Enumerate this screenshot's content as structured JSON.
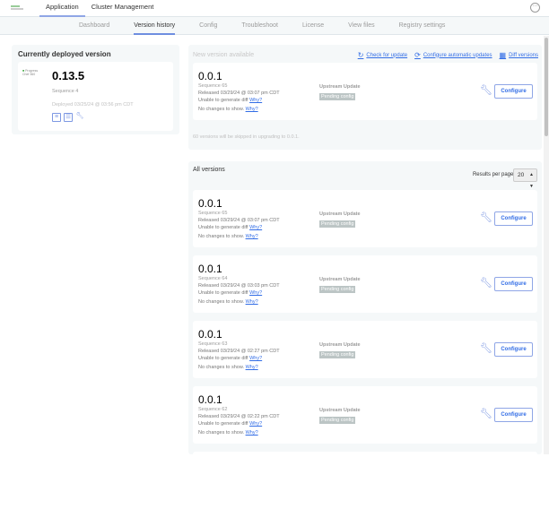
{
  "topnav": {
    "items": [
      "Application",
      "Cluster Management"
    ],
    "active": 0
  },
  "tabs": [
    "Dashboard",
    "Version history",
    "Config",
    "Troubleshoot",
    "License",
    "View files",
    "Registry settings"
  ],
  "active_tab": 1,
  "deployed": {
    "title": "Currently deployed version",
    "logo_text": "Progress Chef 360",
    "version": "0.13.5",
    "sequence": "Sequence 4",
    "deployed_at": "Deployed 03/25/24 @ 03:56 pm CDT"
  },
  "new_version": {
    "title": "New version available",
    "check_label": "Check for update",
    "auto_label": "Configure automatic updates",
    "diff_label": "Diff versions",
    "skip_note": "60 versions will be skipped in upgrading to 0.0.1.",
    "card": {
      "version": "0.0.1",
      "sequence": "Sequence 65",
      "released": "Released 03/29/24 @ 03:07 pm CDT",
      "diff": "Unable to generate diff",
      "changes": "No changes to show.",
      "why": "Why?",
      "source": "Upstream Update",
      "status": "Pending config",
      "button": "Configure"
    }
  },
  "all_versions": {
    "title": "All versions",
    "results_label": "Results per page:",
    "results_value": "20",
    "items": [
      {
        "version": "0.0.1",
        "sequence": "Sequence 65",
        "released": "Released 03/29/24 @ 03:07 pm CDT",
        "diff": "Unable to generate diff",
        "changes": "No changes to show.",
        "why": "Why?",
        "source": "Upstream Update",
        "status": "Pending config",
        "button": "Configure"
      },
      {
        "version": "0.0.1",
        "sequence": "Sequence 64",
        "released": "Released 03/29/24 @ 03:03 pm CDT",
        "diff": "Unable to generate diff",
        "changes": "No changes to show.",
        "why": "Why?",
        "source": "Upstream Update",
        "status": "Pending config",
        "button": "Configure"
      },
      {
        "version": "0.0.1",
        "sequence": "Sequence 63",
        "released": "Released 03/29/24 @ 02:27 pm CDT",
        "diff": "Unable to generate diff",
        "changes": "No changes to show.",
        "why": "Why?",
        "source": "Upstream Update",
        "status": "Pending config",
        "button": "Configure"
      },
      {
        "version": "0.0.1",
        "sequence": "Sequence 62",
        "released": "Released 03/29/24 @ 02:22 pm CDT",
        "diff": "Unable to generate diff",
        "changes": "No changes to show.",
        "why": "Why?",
        "source": "Upstream Update",
        "status": "Pending config",
        "button": "Configure"
      }
    ]
  }
}
